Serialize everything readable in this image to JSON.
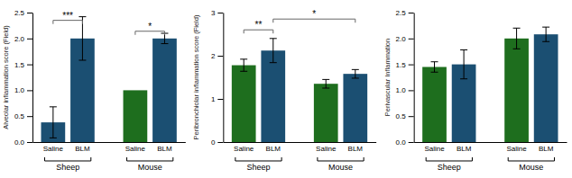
{
  "chart_data": [
    {
      "type": "bar",
      "y_label": "Alveolar inflammation score (Field)",
      "categories": [
        "Saline",
        "BLM",
        "Saline",
        "BLM"
      ],
      "groups": [
        "Sheep",
        "Sheep",
        "Mouse",
        "Mouse"
      ],
      "values": [
        0.38,
        2.0,
        1.0,
        2.0
      ],
      "errors": [
        0.3,
        0.42,
        0.0,
        0.1
      ],
      "colors": [
        "#1b4f72",
        "#1b4f72",
        "#1e6e1e",
        "#1b4f72"
      ],
      "ylim": [
        0,
        2.5
      ],
      "yticks": [
        {
          "value": 0,
          "label": "0.0"
        },
        0.5,
        {
          "value": 1,
          "label": "1.0"
        },
        1.5,
        {
          "value": 2,
          "label": "2.0"
        },
        2.5
      ],
      "annotations": [
        {
          "text": "***",
          "from": 0,
          "to": 1,
          "y": 2.35
        },
        {
          "text": "*",
          "from": 2,
          "to": 3,
          "y": 2.14
        }
      ]
    },
    {
      "type": "bar",
      "y_label": "Peribronchiolar inflammation score (Field)",
      "categories": [
        "Saline",
        "BLM",
        "Saline",
        "BLM"
      ],
      "groups": [
        "Sheep",
        "Sheep",
        "Mouse",
        "Mouse"
      ],
      "values": [
        1.78,
        2.12,
        1.35,
        1.58
      ],
      "errors": [
        0.14,
        0.28,
        0.1,
        0.1
      ],
      "colors": [
        "#1e6e1e",
        "#1b4f72",
        "#1e6e1e",
        "#1b4f72"
      ],
      "ylim": [
        0,
        3.0
      ],
      "yticks": [
        0,
        1,
        2,
        3
      ],
      "annotations": [
        {
          "text": "**",
          "from": 0,
          "to": 1,
          "y": 2.6
        },
        {
          "text": "*",
          "from": 1,
          "to": 3,
          "y": 2.85
        }
      ]
    },
    {
      "type": "bar",
      "y_label": "Perivascular Inflammation",
      "categories": [
        "Saline",
        "BLM",
        "Saline",
        "BLM"
      ],
      "groups": [
        "Sheep",
        "Sheep",
        "Mouse",
        "Mouse"
      ],
      "values": [
        1.45,
        1.5,
        2.0,
        2.08
      ],
      "errors": [
        0.1,
        0.28,
        0.2,
        0.14
      ],
      "colors": [
        "#1e6e1e",
        "#1b4f72",
        "#1e6e1e",
        "#1b4f72"
      ],
      "ylim": [
        0,
        2.5
      ],
      "yticks": [
        {
          "value": 0,
          "label": "0.0"
        },
        0.5,
        {
          "value": 1,
          "label": "1.0"
        },
        1.5,
        {
          "value": 2,
          "label": "2.0"
        },
        2.5
      ],
      "annotations": []
    }
  ]
}
